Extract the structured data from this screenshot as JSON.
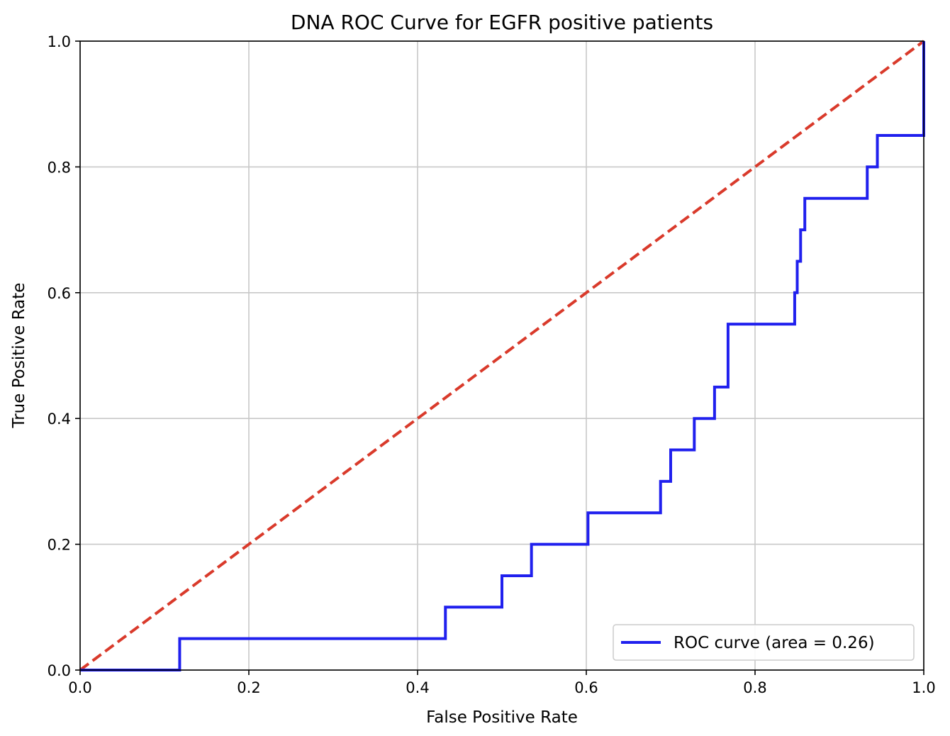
{
  "chart_data": {
    "type": "line",
    "title": "DNA ROC Curve for EGFR positive patients",
    "xlabel": "False Positive Rate",
    "ylabel": "True Positive Rate",
    "xlim": [
      0.0,
      1.0
    ],
    "ylim": [
      0.0,
      1.0
    ],
    "grid": true,
    "legend_position": "lower-right",
    "x_ticks": [
      0.0,
      0.2,
      0.4,
      0.6,
      0.8,
      1.0
    ],
    "x_tick_labels": [
      "0.0",
      "0.2",
      "0.4",
      "0.6",
      "0.8",
      "1.0"
    ],
    "y_ticks": [
      0.0,
      0.2,
      0.4,
      0.6,
      0.8,
      1.0
    ],
    "y_tick_labels": [
      "0.0",
      "0.2",
      "0.4",
      "0.6",
      "0.8",
      "1.0"
    ],
    "series": [
      {
        "name": "ROC curve (area = 0.26)",
        "color": "#2020ee",
        "style": "step",
        "points": [
          [
            0.0,
            0.0
          ],
          [
            0.118,
            0.0
          ],
          [
            0.118,
            0.05
          ],
          [
            0.433,
            0.05
          ],
          [
            0.433,
            0.1
          ],
          [
            0.5,
            0.1
          ],
          [
            0.5,
            0.15
          ],
          [
            0.535,
            0.15
          ],
          [
            0.535,
            0.2
          ],
          [
            0.602,
            0.2
          ],
          [
            0.602,
            0.25
          ],
          [
            0.688,
            0.25
          ],
          [
            0.688,
            0.3
          ],
          [
            0.7,
            0.3
          ],
          [
            0.7,
            0.35
          ],
          [
            0.728,
            0.35
          ],
          [
            0.728,
            0.4
          ],
          [
            0.752,
            0.4
          ],
          [
            0.752,
            0.45
          ],
          [
            0.768,
            0.45
          ],
          [
            0.768,
            0.55
          ],
          [
            0.847,
            0.55
          ],
          [
            0.847,
            0.6
          ],
          [
            0.85,
            0.6
          ],
          [
            0.85,
            0.65
          ],
          [
            0.854,
            0.65
          ],
          [
            0.854,
            0.7
          ],
          [
            0.859,
            0.7
          ],
          [
            0.859,
            0.75
          ],
          [
            0.933,
            0.75
          ],
          [
            0.933,
            0.8
          ],
          [
            0.945,
            0.8
          ],
          [
            0.945,
            0.85
          ],
          [
            1.0,
            0.85
          ],
          [
            1.0,
            1.0
          ]
        ]
      },
      {
        "name": "",
        "color": "#d93a2b",
        "style": "dashed",
        "points": [
          [
            0.0,
            0.0
          ],
          [
            1.0,
            1.0
          ]
        ]
      }
    ]
  }
}
